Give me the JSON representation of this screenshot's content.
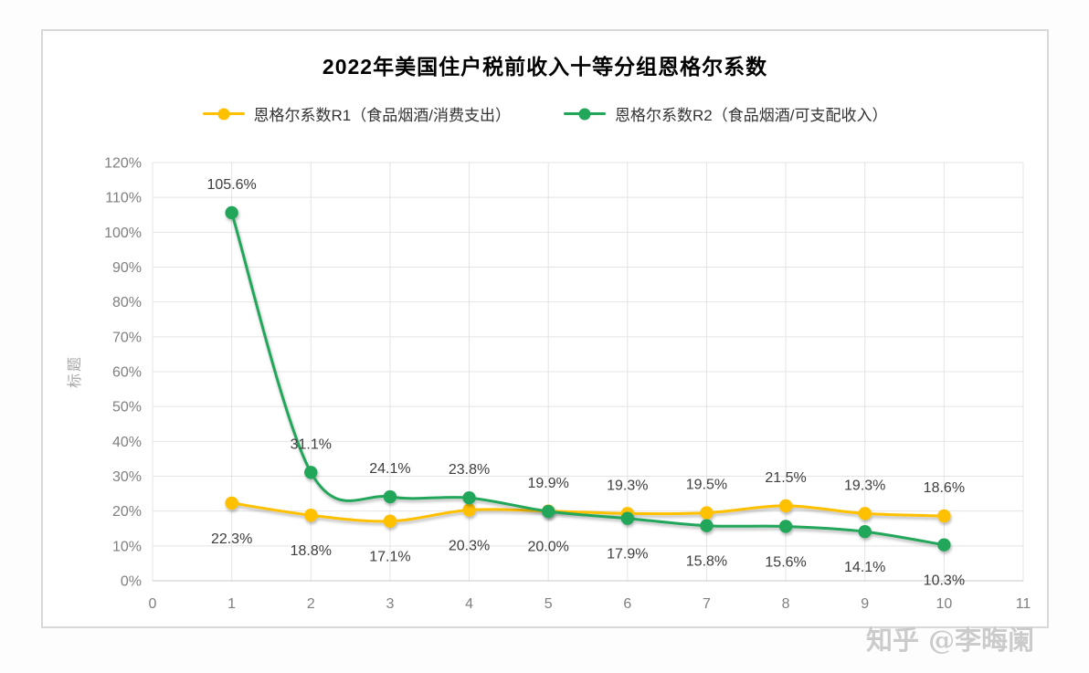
{
  "watermark": {
    "text": "知乎 @李晦阑"
  },
  "chart_data": {
    "type": "line",
    "title": "2022年美国住户税前收入十等分组恩格尔系数",
    "y_axis_title": "标题",
    "x_axis_ticks": [
      "0",
      "1",
      "2",
      "3",
      "4",
      "5",
      "6",
      "7",
      "8",
      "9",
      "10",
      "11"
    ],
    "y_axis_ticks": [
      "0%",
      "10%",
      "20%",
      "30%",
      "40%",
      "50%",
      "60%",
      "70%",
      "80%",
      "90%",
      "100%",
      "110%",
      "120%"
    ],
    "xlim": [
      0,
      11
    ],
    "ylim": [
      0,
      120
    ],
    "grid": true,
    "legend_position": "top",
    "categories": [
      1,
      2,
      3,
      4,
      5,
      6,
      7,
      8,
      9,
      10
    ],
    "series": [
      {
        "name": "恩格尔系数R1（食品烟酒/消费支出）",
        "color": "#FFC000",
        "values": [
          22.3,
          18.8,
          17.1,
          20.3,
          20.0,
          19.3,
          19.5,
          21.5,
          19.3,
          18.6
        ],
        "label_side": [
          "below",
          "below",
          "below",
          "below",
          "below",
          "above",
          "above",
          "above",
          "above",
          "above"
        ]
      },
      {
        "name": "恩格尔系数R2（食品烟酒/可支配收入）",
        "color": "#21A65A",
        "values": [
          105.6,
          31.1,
          24.1,
          23.8,
          19.9,
          17.9,
          15.8,
          15.6,
          14.1,
          10.3
        ],
        "label_side": [
          "above",
          "above",
          "above",
          "above",
          "above",
          "below",
          "below",
          "below",
          "below",
          "below"
        ]
      }
    ],
    "data_label_format": "0.0%"
  }
}
